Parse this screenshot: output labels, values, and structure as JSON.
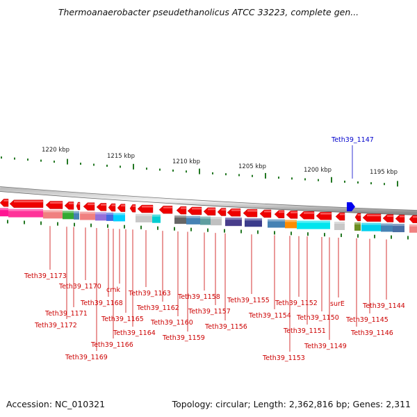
{
  "title": "Thermoanaerobacter pseudethanolicus ATCC 33223, complete gen...",
  "footer": {
    "accession": "Accession: NC_010321",
    "topology": "Topology: circular; Length: 2,362,816 bp; Genes: 2,311"
  },
  "scale_labels": [
    "1220 kbp",
    "1215 kbp",
    "1210 kbp",
    "1205 kbp",
    "1200 kbp",
    "1195 kbp"
  ],
  "highlight_gene": "Teth39_1147",
  "gene_labels": [
    "Teth39_1173",
    "Teth39_1172",
    "Teth39_1171",
    "Teth39_1170",
    "Teth39_1169",
    "Teth39_1168",
    "cmk",
    "Teth39_1166",
    "Teth39_1165",
    "Teth39_1164",
    "Teth39_1163",
    "Teth39_1162",
    "Teth39_1160",
    "Teth39_1159",
    "Teth39_1158",
    "Teth39_1157",
    "Teth39_1156",
    "Teth39_1155",
    "Teth39_1154",
    "Teth39_1153",
    "Teth39_1152",
    "Teth39_1151",
    "Teth39_1150",
    "Teth39_1149",
    "surE",
    "Teth39_1146",
    "Teth39_1145",
    "Teth39_1144"
  ],
  "colors": {
    "gene_arrow": "#ee0000",
    "label_text": "#cc0000",
    "highlight_text": "#0000cc",
    "highlight_arrow": "#0000ee",
    "tick": "#227722",
    "backbone": "#888888"
  }
}
